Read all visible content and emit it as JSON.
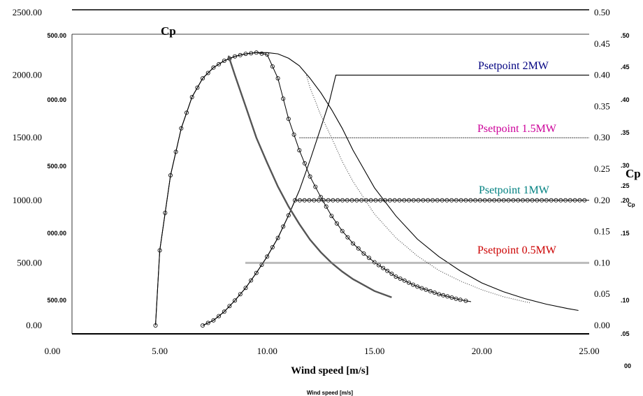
{
  "chart_data": {
    "type": "line",
    "xlabel": "Wind speed [m/s]",
    "xlabel_ghost": "Wind speed [m/s]",
    "cp_label": "Cp",
    "cp_label_right": "Cp",
    "cp_label_small": "Cp",
    "xlim": [
      0,
      25
    ],
    "ylim_left": [
      0,
      2500
    ],
    "ylim_right": [
      0,
      0.5
    ],
    "x_ticks": [
      "0.00",
      "5.00",
      "10.00",
      "15.00",
      "20.00",
      "25.00"
    ],
    "y_left_ticks": [
      "0.00",
      "500.00",
      "1000.00",
      "1500.00",
      "2000.00",
      "2500.00"
    ],
    "y_right_ticks": [
      "0.00",
      "0.05",
      "0.10",
      "0.15",
      "0.20",
      "0.25",
      "0.30",
      "0.35",
      "0.40",
      "0.45",
      "0.50"
    ],
    "ghost_left_ticks": [
      "500.00",
      "000.00",
      "500.00",
      "000.00",
      "500.00"
    ],
    "ghost_right_ticks": [
      ".05",
      ".10",
      ".15",
      ".20",
      ".25",
      ".30",
      ".35",
      ".40",
      ".45",
      ".50"
    ],
    "ghost_corner_tick": "00",
    "series": [
      {
        "name": "Psetpoint 2MW",
        "color": "#000080",
        "rated_kw": 2000,
        "cp": [
          [
            4.8,
            0.0
          ],
          [
            5.0,
            0.12
          ],
          [
            5.5,
            0.24
          ],
          [
            6.0,
            0.315
          ],
          [
            6.5,
            0.365
          ],
          [
            7.0,
            0.395
          ],
          [
            7.5,
            0.412
          ],
          [
            8.0,
            0.423
          ],
          [
            8.5,
            0.43
          ],
          [
            9.0,
            0.434
          ],
          [
            9.5,
            0.436
          ],
          [
            10.0,
            0.436
          ],
          [
            10.5,
            0.434
          ],
          [
            11.0,
            0.427
          ],
          [
            11.5,
            0.415
          ],
          [
            12.0,
            0.395
          ],
          [
            12.5,
            0.372
          ],
          [
            13.0,
            0.345
          ],
          [
            13.5,
            0.315
          ],
          [
            14.0,
            0.28
          ],
          [
            15.0,
            0.22
          ],
          [
            16.0,
            0.175
          ],
          [
            17.0,
            0.138
          ],
          [
            18.0,
            0.11
          ],
          [
            19.0,
            0.087
          ],
          [
            20.0,
            0.068
          ],
          [
            21.0,
            0.054
          ],
          [
            22.0,
            0.043
          ],
          [
            23.0,
            0.034
          ],
          [
            24.0,
            0.027
          ],
          [
            24.5,
            0.024
          ]
        ],
        "power": [
          [
            7.0,
            0
          ],
          [
            7.5,
            40
          ],
          [
            8.0,
            110
          ],
          [
            8.5,
            200
          ],
          [
            9.0,
            300
          ],
          [
            9.5,
            420
          ],
          [
            10.0,
            550
          ],
          [
            10.5,
            700
          ],
          [
            11.0,
            880
          ],
          [
            11.5,
            1080
          ],
          [
            12.0,
            1320
          ],
          [
            12.5,
            1580
          ],
          [
            12.9,
            1790
          ],
          [
            13.2,
            2000
          ],
          [
            25.0,
            2000
          ]
        ]
      },
      {
        "name": "Psetpoint 1.5MW",
        "color": "#cc0099",
        "rated_kw": 1500,
        "cp": [
          [
            11.8,
            0.403
          ],
          [
            12.0,
            0.38
          ],
          [
            12.5,
            0.336
          ],
          [
            13.0,
            0.3
          ],
          [
            13.5,
            0.262
          ],
          [
            14.0,
            0.23
          ],
          [
            15.0,
            0.178
          ],
          [
            16.0,
            0.14
          ],
          [
            17.0,
            0.111
          ],
          [
            18.0,
            0.088
          ],
          [
            19.0,
            0.071
          ],
          [
            20.0,
            0.057
          ],
          [
            21.0,
            0.046
          ],
          [
            22.0,
            0.038
          ],
          [
            22.3,
            0.036
          ]
        ],
        "power": [
          [
            11.5,
            1500
          ],
          [
            25.0,
            1500
          ]
        ]
      },
      {
        "name": "Psetpoint 1MW",
        "color": "#008080",
        "rated_kw": 1000,
        "cp": [
          [
            4.8,
            0.0
          ],
          [
            5.0,
            0.12
          ],
          [
            5.5,
            0.24
          ],
          [
            6.0,
            0.315
          ],
          [
            6.5,
            0.365
          ],
          [
            7.0,
            0.395
          ],
          [
            7.5,
            0.412
          ],
          [
            8.0,
            0.423
          ],
          [
            8.5,
            0.43
          ],
          [
            9.0,
            0.434
          ],
          [
            9.5,
            0.436
          ],
          [
            10.0,
            0.433
          ],
          [
            10.5,
            0.395
          ],
          [
            11.0,
            0.33
          ],
          [
            11.5,
            0.28
          ],
          [
            12.0,
            0.238
          ],
          [
            12.5,
            0.205
          ],
          [
            13.0,
            0.175
          ],
          [
            13.5,
            0.151
          ],
          [
            14.0,
            0.131
          ],
          [
            14.5,
            0.115
          ],
          [
            15.0,
            0.101
          ],
          [
            16.0,
            0.078
          ],
          [
            17.0,
            0.062
          ],
          [
            18.0,
            0.05
          ],
          [
            19.0,
            0.041
          ],
          [
            19.5,
            0.038
          ]
        ],
        "power": [
          [
            7.0,
            0
          ],
          [
            7.5,
            40
          ],
          [
            8.0,
            110
          ],
          [
            8.5,
            200
          ],
          [
            9.0,
            300
          ],
          [
            9.5,
            420
          ],
          [
            10.0,
            550
          ],
          [
            10.5,
            700
          ],
          [
            11.0,
            880
          ],
          [
            11.3,
            1000
          ],
          [
            25.0,
            1000
          ]
        ]
      },
      {
        "name": "Psetpoint 0.5MW",
        "color": "#cc0000",
        "rated_kw": 500,
        "cp": [
          [
            8.2,
            0.431
          ],
          [
            8.5,
            0.4
          ],
          [
            9.0,
            0.35
          ],
          [
            9.5,
            0.3
          ],
          [
            10.0,
            0.26
          ],
          [
            10.5,
            0.222
          ],
          [
            11.0,
            0.19
          ],
          [
            11.5,
            0.162
          ],
          [
            12.0,
            0.137
          ],
          [
            12.5,
            0.117
          ],
          [
            13.0,
            0.1
          ],
          [
            13.5,
            0.086
          ],
          [
            14.0,
            0.074
          ],
          [
            15.0,
            0.055
          ],
          [
            15.8,
            0.045
          ]
        ],
        "power": [
          [
            9.0,
            500
          ],
          [
            25.0,
            500
          ]
        ]
      }
    ]
  }
}
